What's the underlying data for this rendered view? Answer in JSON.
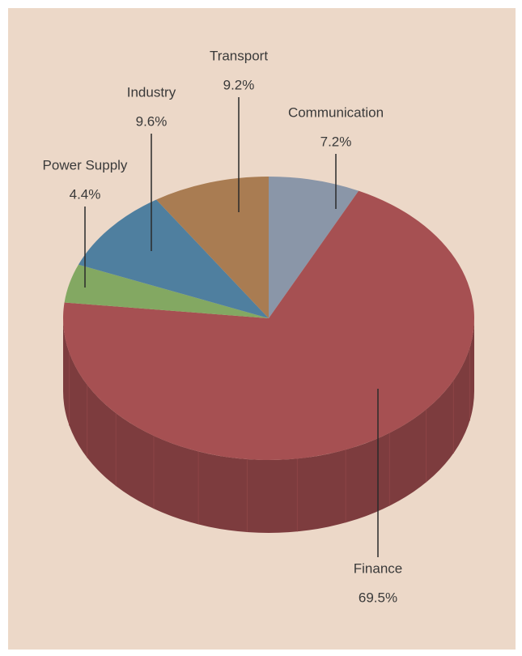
{
  "chart_data": {
    "type": "pie",
    "categories": [
      "Communication",
      "Finance",
      "Power Supply",
      "Industry",
      "Transport"
    ],
    "values": [
      7.2,
      69.5,
      4.4,
      9.6,
      9.2
    ],
    "value_labels": [
      "7.2%",
      "69.5%",
      "4.4%",
      "9.6%",
      "9.2%"
    ],
    "colors": [
      "#8a96a8",
      "#a65052",
      "#83a862",
      "#4f7f9f",
      "#a97c52"
    ]
  }
}
